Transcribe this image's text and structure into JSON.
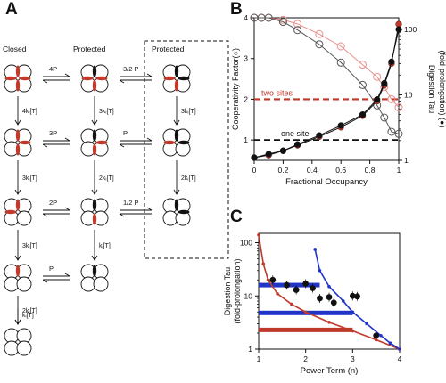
{
  "panels": {
    "a": "A",
    "b": "B",
    "c": "C"
  },
  "scheme": {
    "col_closed": "Closed",
    "col_protected": "Protected",
    "col_protected_box": "Protected",
    "row_labels": [
      {
        "top": "4P",
        "right_rate": "3/2 P"
      },
      {
        "top": "3P",
        "right_rate": "P"
      },
      {
        "top": "2P",
        "right_rate": "1/2 P"
      },
      {
        "top": "P"
      }
    ],
    "closed_rates": [
      "4kᵢ[T]",
      "3kᵢ[T]",
      "3kᵢ[T]",
      "2kᵢ[T]",
      "kᵢ[T]"
    ],
    "protected_rates": [
      "3kᵢ[T]",
      "2kᵢ[T]",
      "kᵢ[T]"
    ],
    "box_rates": [
      "3kᵢ[T]",
      "2kᵢ[T]"
    ]
  },
  "colors": {
    "red": "#c0392b",
    "pink": "#e8908c",
    "blue": "#2034c8",
    "black": "#111111"
  },
  "chart_data": [
    {
      "type": "line",
      "panel": "B",
      "xlabel": "Fractional Occupancy",
      "ylabel_left": "Cooperativity Factor(○)",
      "ylabel_right_1": "Digestion Tau",
      "ylabel_right_2": "(fold-prolongation) (●)",
      "xlim": [
        0,
        1
      ],
      "ylim_left": [
        0.5,
        4
      ],
      "ylim_right_log": [
        1,
        150
      ],
      "x_ticks": [
        "0",
        "0.2",
        "0.4",
        "0.6",
        "0.8",
        "1"
      ],
      "y_ticks_left": [
        "1",
        "2",
        "3",
        "4"
      ],
      "y_ticks_right": [
        "1",
        "10",
        "100"
      ],
      "annotations": [
        "two sites",
        "one site"
      ],
      "series": [
        {
          "name": "two sites",
          "style": "open-circle",
          "color": "#e8908c",
          "x": [
            0,
            0.05,
            0.1,
            0.2,
            0.3,
            0.45,
            0.6,
            0.75,
            0.85,
            0.9,
            0.95,
            1.0
          ],
          "y": [
            4,
            4,
            4,
            3.95,
            3.85,
            3.6,
            3.3,
            2.85,
            2.55,
            2.3,
            2.0,
            1.8
          ]
        },
        {
          "name": "one site",
          "style": "open-circle",
          "color": "#555555",
          "x": [
            0,
            0.05,
            0.1,
            0.2,
            0.3,
            0.45,
            0.6,
            0.75,
            0.85,
            0.9,
            0.95,
            1.0
          ],
          "y": [
            4,
            4,
            4,
            3.9,
            3.7,
            3.35,
            2.9,
            2.35,
            1.85,
            1.55,
            1.2,
            1.15
          ]
        },
        {
          "name": "tau two sites",
          "style": "filled-circle",
          "color": "#c0392b",
          "x": [
            0,
            0.1,
            0.2,
            0.3,
            0.45,
            0.6,
            0.75,
            0.85,
            0.9,
            0.95,
            1.0
          ],
          "y": [
            1.1,
            1.2,
            1.4,
            1.7,
            2.3,
            3.2,
            4.8,
            8.0,
            14,
            30,
            120
          ]
        },
        {
          "name": "tau one site",
          "style": "filled-circle",
          "color": "#111111",
          "x": [
            0,
            0.1,
            0.2,
            0.3,
            0.45,
            0.6,
            0.75,
            0.85,
            0.9,
            0.95,
            1.0
          ],
          "y": [
            1.1,
            1.25,
            1.4,
            1.75,
            2.4,
            3.4,
            5.0,
            8.5,
            15,
            32,
            100
          ]
        }
      ]
    },
    {
      "type": "line",
      "panel": "C",
      "xlabel": "Power Term (n)",
      "ylabel_1": "Digestion Tau",
      "ylabel_2": "(fold-prolongation)",
      "xlim": [
        1,
        4
      ],
      "ylim_log": [
        1,
        150
      ],
      "x_ticks": [
        "1",
        "2",
        "3",
        "4"
      ],
      "y_ticks": [
        "1",
        "10",
        "100"
      ],
      "series": [
        {
          "name": "red curve",
          "color": "#c0392b",
          "x": [
            1.0,
            1.1,
            1.2,
            1.4,
            1.7,
            2.0,
            2.5,
            3.0,
            3.5,
            4.0
          ],
          "y": [
            140,
            40,
            20,
            11,
            7,
            5,
            3.2,
            2.2,
            1.5,
            1.0
          ]
        },
        {
          "name": "blue curve",
          "color": "#2034c8",
          "x": [
            2.2,
            2.3,
            2.5,
            2.8,
            3.0,
            3.3,
            3.6,
            3.8,
            4.0
          ],
          "y": [
            75,
            30,
            15,
            8,
            5,
            3,
            1.8,
            1.3,
            1.0
          ]
        },
        {
          "name": "data",
          "style": "filled-circle",
          "color": "#111111",
          "x": [
            1.3,
            1.6,
            1.8,
            2.0,
            2.15,
            2.3,
            2.5,
            2.6,
            3.0,
            3.1,
            3.5
          ],
          "y": [
            20,
            16,
            13,
            17,
            14,
            9,
            9.5,
            7.5,
            10,
            9.8,
            1.8
          ]
        }
      ],
      "hlines": [
        {
          "color": "#2034c8",
          "y": 16,
          "x": [
            1.0,
            2.3
          ]
        },
        {
          "color": "#2034c8",
          "y": 4.8,
          "x": [
            1.0,
            3.0
          ]
        },
        {
          "color": "#c0392b",
          "y": 2.3,
          "x": [
            1.0,
            3.0
          ]
        }
      ]
    }
  ]
}
